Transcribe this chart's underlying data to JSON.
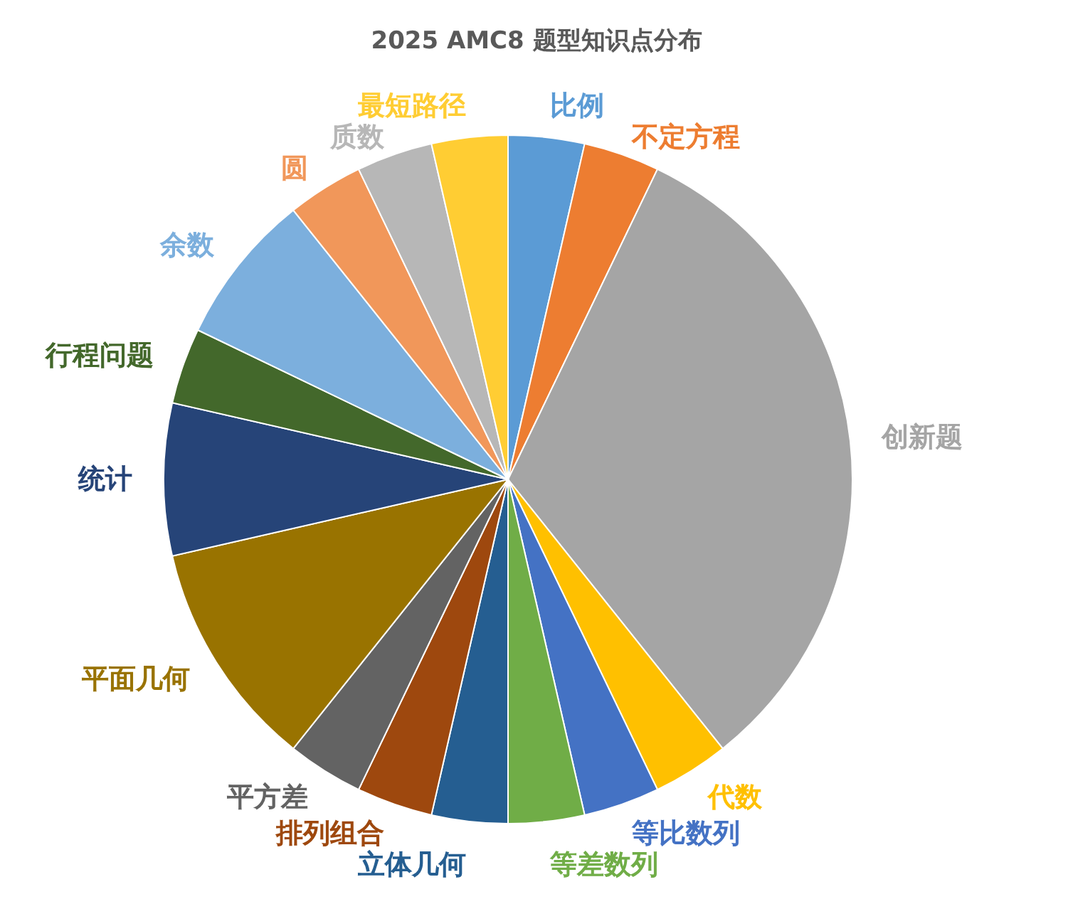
{
  "chart_data": {
    "type": "pie",
    "title": "2025 AMC8 题型知识点分布",
    "categories": [
      "比例",
      "不定方程",
      "创新题",
      "代数",
      "等比数列",
      "等差数列",
      "立体几何",
      "排列组合",
      "平方差",
      "平面几何",
      "统计",
      "行程问题",
      "余数",
      "圆",
      "质数",
      "最短路径"
    ],
    "values": [
      3.571,
      3.571,
      32.143,
      3.571,
      3.571,
      3.571,
      3.571,
      3.571,
      3.571,
      10.714,
      7.143,
      3.571,
      7.143,
      3.571,
      3.571,
      3.571
    ],
    "colors": [
      "#5b9bd5",
      "#ed7d31",
      "#a5a5a5",
      "#ffc000",
      "#4472c4",
      "#70ad47",
      "#255e91",
      "#9e480e",
      "#636363",
      "#997300",
      "#264478",
      "#43682b",
      "#7cafdd",
      "#f1975a",
      "#b7b7b7",
      "#ffcd33"
    ]
  }
}
